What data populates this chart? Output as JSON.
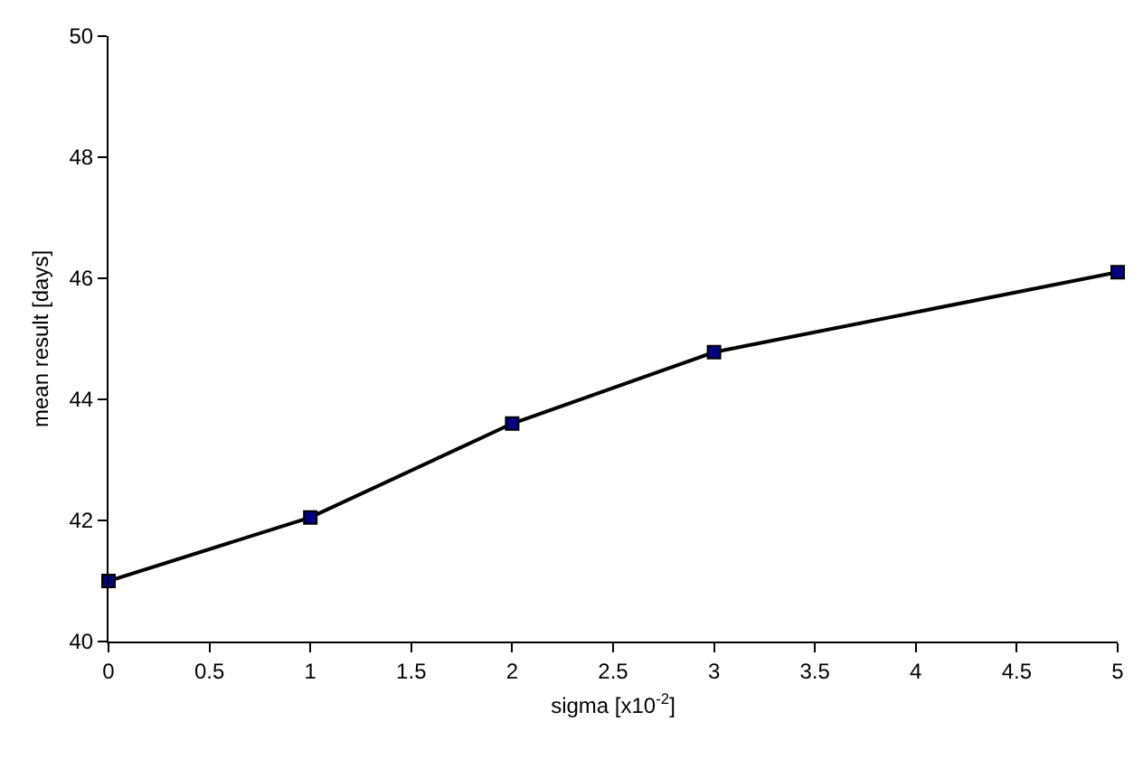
{
  "chart_data": {
    "type": "line",
    "xlabel": "sigma [x10$^{-2}$]",
    "ylabel": "mean result [days]",
    "x": [
      0,
      1,
      2,
      3,
      5
    ],
    "series": [
      {
        "color": "#000000",
        "values": [
          41.0,
          42.05,
          43.6,
          44.78,
          46.1
        ]
      }
    ],
    "marker": "square",
    "line_style": "solid",
    "grid": false,
    "xlim": [
      0,
      5
    ],
    "xticks": [
      0,
      0.5,
      1,
      1.5,
      2,
      2.5,
      3,
      3.5,
      4,
      4.5,
      5
    ],
    "ylim": [
      40,
      50
    ],
    "yticks": [
      40,
      42,
      44,
      46,
      48,
      50
    ]
  }
}
